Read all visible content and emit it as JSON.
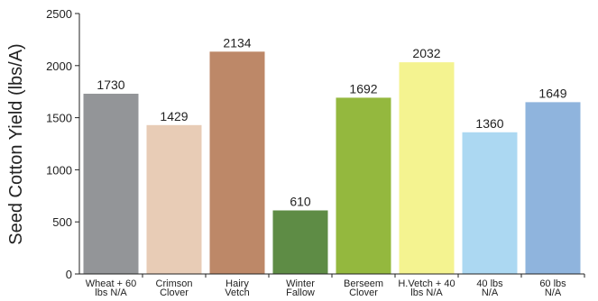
{
  "chart_data": {
    "type": "bar",
    "title": "",
    "xlabel": "",
    "ylabel": "Seed Cotton Yield (lbs/A)",
    "ylim": [
      0,
      2500
    ],
    "yticks": [
      0,
      500,
      1000,
      1500,
      2000,
      2500
    ],
    "grid": false,
    "legend": "none",
    "categories": [
      [
        "Wheat + 60",
        "lbs N/A"
      ],
      [
        "Crimson",
        "Clover"
      ],
      [
        "Hairy",
        "Vetch"
      ],
      [
        "Winter",
        "Fallow"
      ],
      [
        "Berseem",
        "Clover"
      ],
      [
        "H.Vetch + 40",
        "lbs N/A"
      ],
      [
        "40 lbs",
        "N/A"
      ],
      [
        "60 lbs",
        "N/A"
      ]
    ],
    "values": [
      1730,
      1429,
      2134,
      610,
      1692,
      2032,
      1360,
      1649
    ],
    "data_labels": [
      "1730",
      "1429",
      "2134",
      "610",
      "1692",
      "2032",
      "1360",
      "1649"
    ],
    "colors": [
      "#939598",
      "#e8ccb6",
      "#bd8868",
      "#5e8c45",
      "#94b83e",
      "#f4f390",
      "#acd8f2",
      "#8fb4dd"
    ]
  }
}
